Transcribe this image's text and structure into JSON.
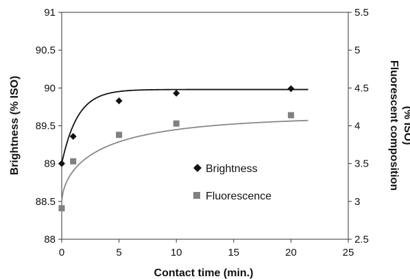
{
  "chart_data": {
    "type": "scatter",
    "xlabel": "Contact time (min.)",
    "ylabel": "Brightness (% ISO)",
    "y2label_line1": "Fluorescent composition",
    "y2label_line2": "(% ISO)",
    "xlim": [
      0,
      25
    ],
    "ylim": [
      88,
      91
    ],
    "y2lim": [
      2.5,
      5.5
    ],
    "x_ticks": [
      "0",
      "5",
      "10",
      "15",
      "20",
      "25"
    ],
    "y_ticks": [
      "91",
      "90.5",
      "90",
      "89.5",
      "89",
      "88.5",
      "88"
    ],
    "y2_ticks": [
      "5.5",
      "5",
      "4.5",
      "4",
      "3.5",
      "3",
      "2.5"
    ],
    "legend_position": "center-right",
    "grid": false,
    "series": [
      {
        "name": "Brightness",
        "axis": "left",
        "marker": "diamond",
        "color": "#111111",
        "points": [
          [
            0,
            89.0
          ],
          [
            1,
            89.36
          ],
          [
            5,
            89.83
          ],
          [
            10,
            89.93
          ],
          [
            20,
            89.99
          ]
        ]
      },
      {
        "name": "Fluorescence",
        "axis": "right",
        "marker": "square",
        "color": "#808080",
        "points": [
          [
            0,
            2.91
          ],
          [
            1,
            3.53
          ],
          [
            5,
            3.88
          ],
          [
            10,
            4.03
          ],
          [
            20,
            4.14
          ]
        ]
      }
    ],
    "trendlines": [
      {
        "series": "Brightness",
        "axis": "left",
        "color": "#111111",
        "model": "exponential-rise",
        "y0": 89.0,
        "yinf": 89.98,
        "k": 0.72,
        "x_end": 21.5
      },
      {
        "series": "Fluorescence",
        "axis": "right",
        "color": "#888888",
        "model": "exponential-rise-power",
        "y0": 3.0,
        "yinf": 4.13,
        "k": 0.44,
        "p": 0.62,
        "x_end": 21.5
      }
    ]
  }
}
